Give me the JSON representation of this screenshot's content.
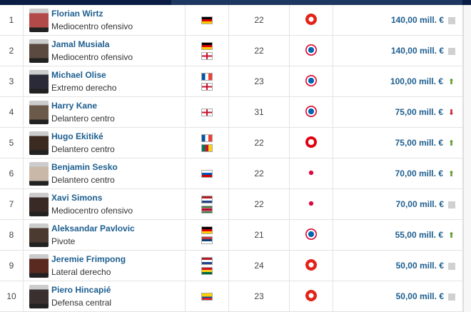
{
  "rows": [
    {
      "rank": "1",
      "name": "Florian Wirtz",
      "position": "Mediocentro ofensivo",
      "flags": [
        "germany"
      ],
      "age": "22",
      "club": "leverkusen",
      "value": "140,00 mill. €",
      "trend": "neutral"
    },
    {
      "rank": "2",
      "name": "Jamal Musiala",
      "position": "Mediocentro ofensivo",
      "flags": [
        "germany",
        "england"
      ],
      "age": "22",
      "club": "bayern",
      "value": "140,00 mill. €",
      "trend": "neutral"
    },
    {
      "rank": "3",
      "name": "Michael Olise",
      "position": "Extremo derecho",
      "flags": [
        "france",
        "england"
      ],
      "age": "23",
      "club": "bayern",
      "value": "100,00 mill. €",
      "trend": "up"
    },
    {
      "rank": "4",
      "name": "Harry Kane",
      "position": "Delantero centro",
      "flags": [
        "england"
      ],
      "age": "31",
      "club": "bayern",
      "value": "75,00 mill. €",
      "trend": "down"
    },
    {
      "rank": "5",
      "name": "Hugo Ekitiké",
      "position": "Delantero centro",
      "flags": [
        "france",
        "cameroon"
      ],
      "age": "22",
      "club": "frankfurt",
      "value": "75,00 mill. €",
      "trend": "up"
    },
    {
      "rank": "6",
      "name": "Benjamin Sesko",
      "position": "Delantero centro",
      "flags": [
        "slovenia"
      ],
      "age": "22",
      "club": "leipzig",
      "value": "70,00 mill. €",
      "trend": "up"
    },
    {
      "rank": "7",
      "name": "Xavi Simons",
      "position": "Mediocentro ofensivo",
      "flags": [
        "netherlands",
        "suriname"
      ],
      "age": "22",
      "club": "leipzig",
      "value": "70,00 mill. €",
      "trend": "neutral"
    },
    {
      "rank": "8",
      "name": "Aleksandar Pavlovic",
      "position": "Pivote",
      "flags": [
        "germany",
        "serbia"
      ],
      "age": "21",
      "club": "bayern",
      "value": "55,00 mill. €",
      "trend": "up"
    },
    {
      "rank": "9",
      "name": "Jeremie Frimpong",
      "position": "Lateral derecho",
      "flags": [
        "netherlands",
        "ghana"
      ],
      "age": "24",
      "club": "leverkusen",
      "value": "50,00 mill. €",
      "trend": "neutral"
    },
    {
      "rank": "10",
      "name": "Piero Hincapié",
      "position": "Defensa central",
      "flags": [
        "ecuador"
      ],
      "age": "23",
      "club": "leverkusen",
      "value": "50,00 mill. €",
      "trend": "neutral"
    }
  ],
  "colors": {
    "link": "#1d5e8f",
    "up": "#5e9b2f",
    "down": "#c0282d",
    "header": "#0b1d45"
  }
}
